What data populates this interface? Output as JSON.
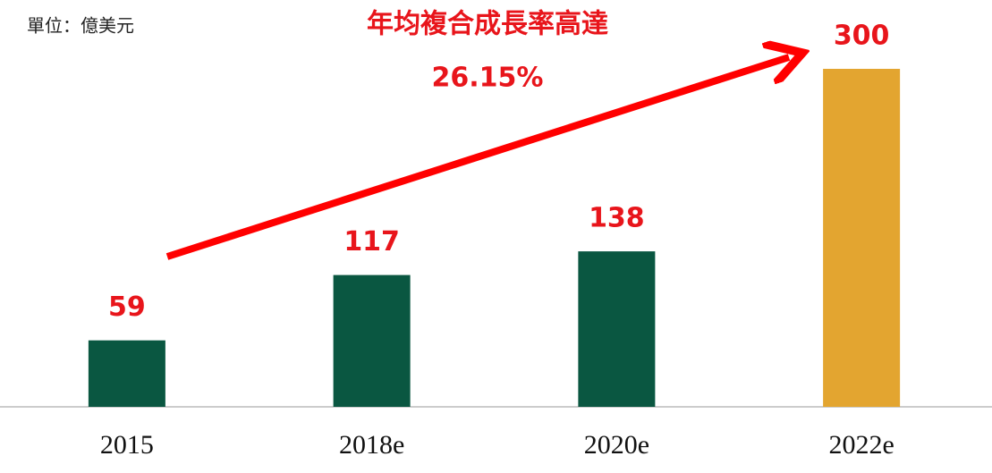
{
  "chart_data": {
    "type": "bar",
    "unit_label": "單位：億美元",
    "annotation_title": "年均複合成長率高達",
    "annotation_value": "26.15%",
    "categories": [
      "2015",
      "2018e",
      "2020e",
      "2022e"
    ],
    "values": [
      59,
      117,
      138,
      300
    ],
    "colors": [
      "#0a5741",
      "#0a5741",
      "#0a5741",
      "#e3a530"
    ]
  }
}
